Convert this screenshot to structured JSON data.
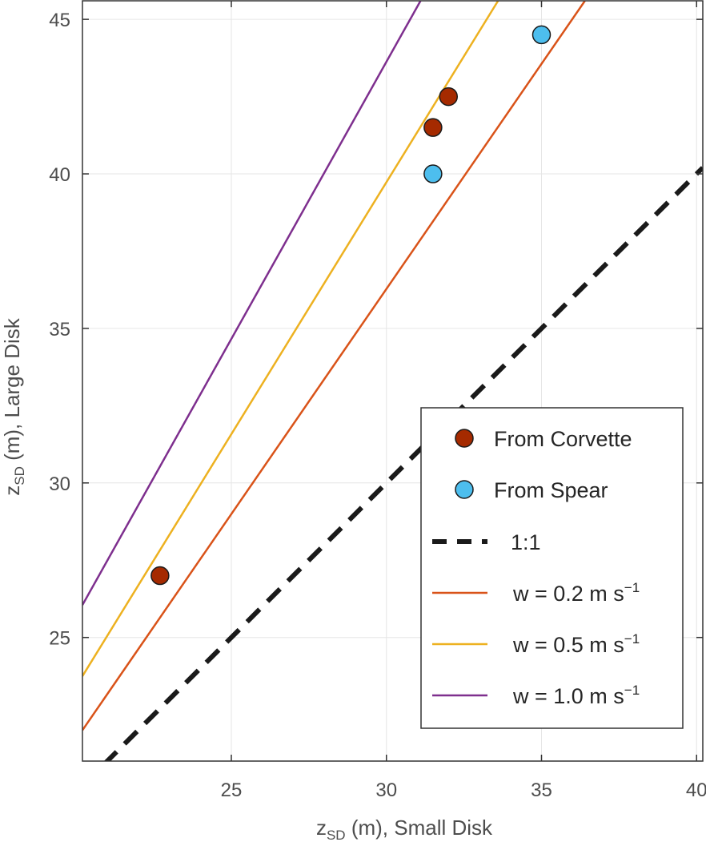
{
  "chart_data": {
    "type": "scatter",
    "xlabel": {
      "main": "z",
      "sub": "SD",
      "rest": " (m), Small Disk"
    },
    "ylabel": {
      "main": "z",
      "sub": "SD",
      "rest": " (m), Large Disk"
    },
    "xlim": [
      20.2,
      40.2
    ],
    "ylim": [
      21,
      45.6
    ],
    "xticks": [
      25,
      30,
      35,
      40
    ],
    "yticks": [
      25,
      30,
      35,
      40,
      45
    ],
    "grid": true,
    "legend_position": "bottom-right",
    "series": [
      {
        "kind": "points",
        "name": "From Corvette",
        "color": "#a52a00",
        "points": [
          {
            "x": 22.7,
            "y": 27.0
          },
          {
            "x": 31.5,
            "y": 41.5
          },
          {
            "x": 32.0,
            "y": 42.5
          }
        ]
      },
      {
        "kind": "points",
        "name": "From Spear",
        "color": "#4dbeee",
        "points": [
          {
            "x": 31.5,
            "y": 40.0
          },
          {
            "x": 35.0,
            "y": 44.5
          }
        ]
      },
      {
        "kind": "line",
        "name": "1:1",
        "color": "#1a1a1a",
        "dashed": true,
        "points": [
          {
            "x": 20.9,
            "y": 20.9
          },
          {
            "x": 40.2,
            "y": 40.2
          }
        ]
      },
      {
        "kind": "line",
        "name": "w = 0.2 m s",
        "sup": "−1",
        "color": "#d95319",
        "points": [
          {
            "x": 20.2,
            "y": 22.0
          },
          {
            "x": 36.4,
            "y": 45.6
          }
        ]
      },
      {
        "kind": "line",
        "name": "w = 0.5 m s",
        "sup": "−1",
        "color": "#edb120",
        "points": [
          {
            "x": 20.2,
            "y": 23.75
          },
          {
            "x": 33.6,
            "y": 45.6
          }
        ]
      },
      {
        "kind": "line",
        "name": "w = 1.0 m s",
        "sup": "−1",
        "color": "#7e2f8e",
        "points": [
          {
            "x": 20.2,
            "y": 26.05
          },
          {
            "x": 31.1,
            "y": 45.6
          }
        ]
      }
    ],
    "legend_order": [
      "From Corvette",
      "From Spear",
      "1:1",
      "w = 0.2 m s",
      "w = 0.5 m s",
      "w = 1.0 m s"
    ]
  }
}
